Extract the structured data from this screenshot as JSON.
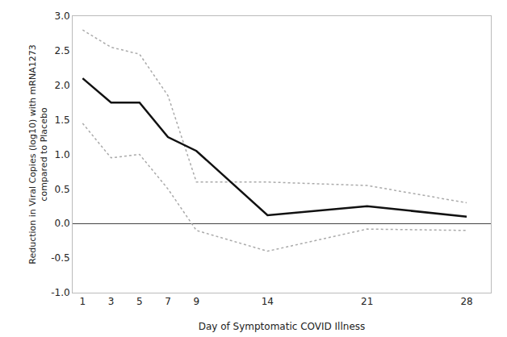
{
  "chart_data": {
    "type": "line",
    "xlabel": "Day of Symptomatic COVID Illness",
    "ylabel": "Reduction in Viral Copies (log10) with mRNA1273\ncompared to Placebo",
    "x": [
      1,
      3,
      5,
      7,
      9,
      14,
      21,
      28
    ],
    "series": [
      {
        "color": "#aaaaaa",
        "line_style": "dotted",
        "values": [
          2.8,
          2.55,
          2.45,
          1.85,
          0.6,
          0.6,
          0.55,
          0.3
        ]
      },
      {
        "color": "#aaaaaa",
        "line_style": "dotted",
        "values": [
          1.45,
          0.95,
          1.0,
          0.5,
          -0.1,
          -0.4,
          -0.08,
          -0.1
        ]
      },
      {
        "color": "#111111",
        "line_style": "solid",
        "values": [
          2.1,
          1.75,
          1.75,
          1.25,
          1.05,
          0.12,
          0.25,
          0.1
        ]
      }
    ],
    "xlim": [
      0.3,
      29.7
    ],
    "xticks": [
      1,
      3,
      5,
      7,
      9,
      14,
      21,
      28
    ],
    "ylim": [
      -1.0,
      3.0
    ],
    "yticks": [
      {
        "value": -1.0,
        "label": "-1.0"
      },
      -0.5,
      {
        "value": 0.0,
        "label": "0.0"
      },
      0.5,
      {
        "value": 1.0,
        "label": "1.0"
      },
      1.5,
      {
        "value": 2.0,
        "label": "2.0"
      },
      2.5,
      {
        "value": 3.0,
        "label": "3.0"
      }
    ],
    "grid": false
  }
}
